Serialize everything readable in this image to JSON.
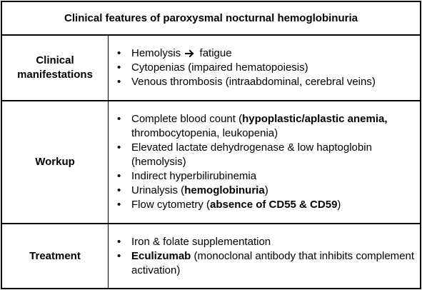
{
  "title": "Clinical features of paroxysmal nocturnal hemoglobinuria",
  "bullet_symbol": "•",
  "rows": [
    {
      "label_lines": [
        "Clinical",
        "manifestations"
      ],
      "items": [
        {
          "pre": "Hemolysis",
          "arrow_icon": "right-arrow-icon",
          "post": "fatigue"
        },
        {
          "text": "Cytopenias (impaired hematopoiesis)"
        },
        {
          "text": "Venous thrombosis (intraabdominal, cerebral veins)"
        }
      ]
    },
    {
      "label_lines": [
        "Workup"
      ],
      "items": [
        {
          "pre": "Complete blood count (",
          "bold": "hypoplastic/aplastic anemia,",
          "post": " thrombocytopenia, leukopenia)"
        },
        {
          "text": "Elevated lactate dehydrogenase & low haptoglobin (hemolysis)"
        },
        {
          "text": "Indirect hyperbilirubinemia"
        },
        {
          "pre": "Urinalysis (",
          "bold": "hemoglobinuria",
          "post": ")"
        },
        {
          "pre": "Flow cytometry (",
          "bold": "absence of CD55 & CD59",
          "post": ")"
        }
      ]
    },
    {
      "label_lines": [
        "Treatment"
      ],
      "items": [
        {
          "text": "Iron & folate supplementation"
        },
        {
          "pre": "",
          "bold": "Eculizumab",
          "post": " (monoclonal antibody that inhibits complement activation)"
        }
      ]
    }
  ]
}
